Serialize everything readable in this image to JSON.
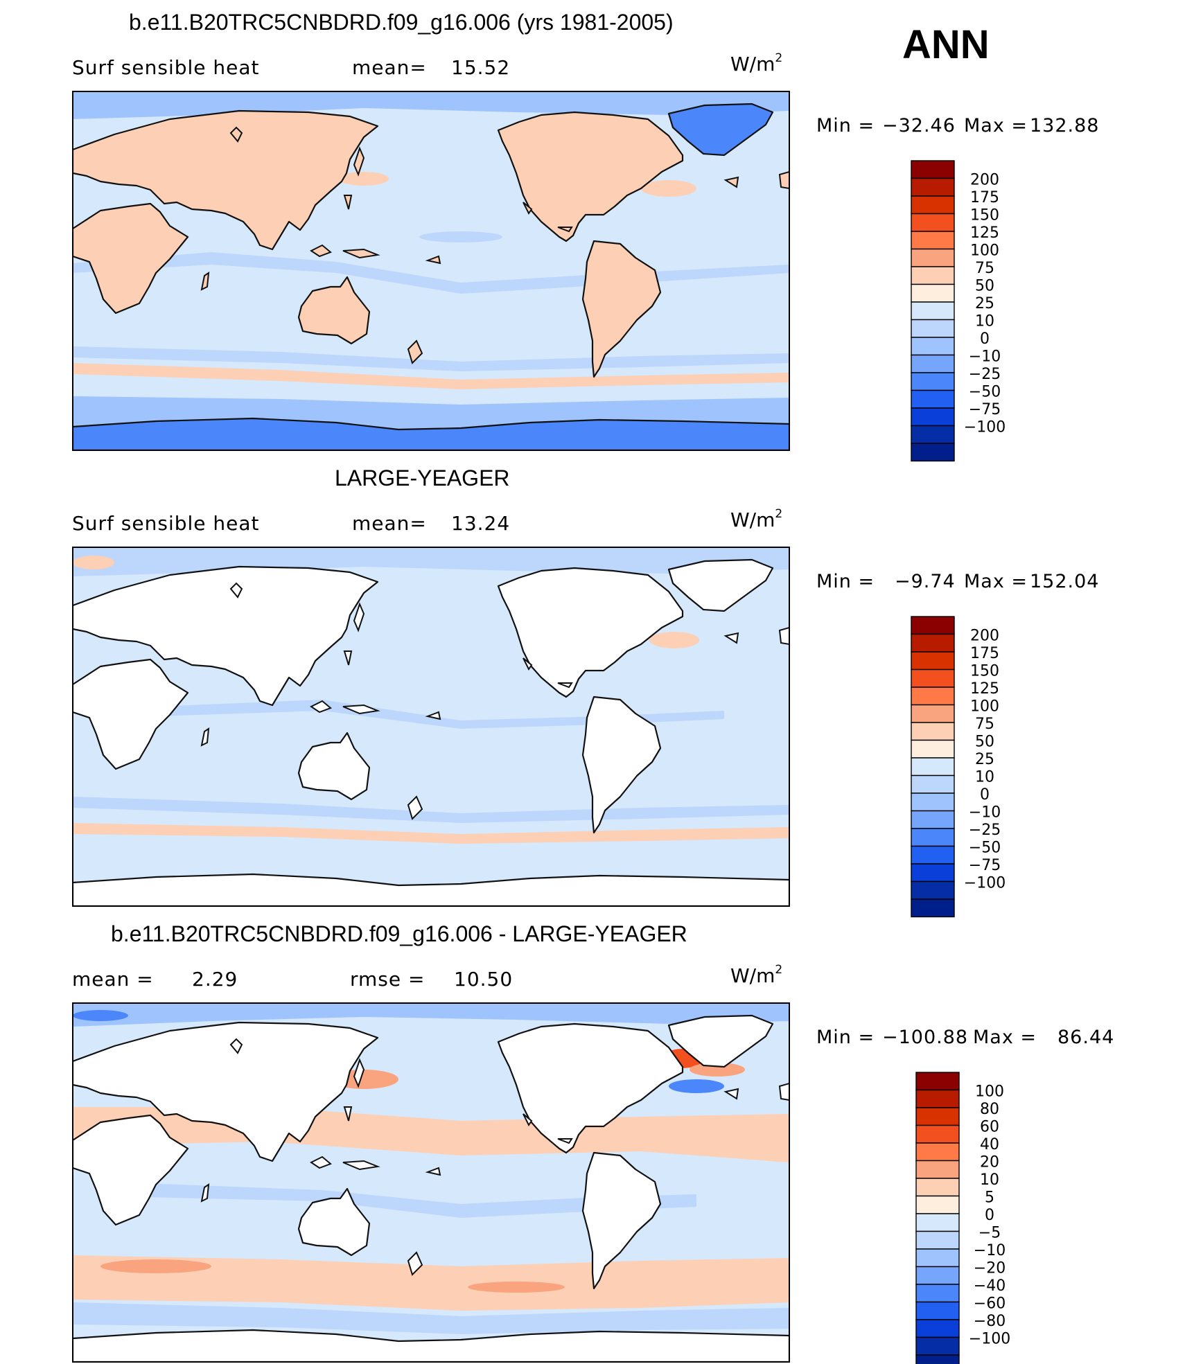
{
  "season": "ANN",
  "units_base": "W/m",
  "units_exp": "2",
  "panels": [
    {
      "title": "b.e11.B20TRC5CNBDRD.f09_g16.006 (yrs 1981-2005)",
      "left_label": "Surf sensible heat",
      "mid_label": "mean=",
      "mid_value": "15.52",
      "min_label": "Min =",
      "min_value": "−32.46",
      "max_label": "Max =",
      "max_value": "132.88",
      "land_filled": true,
      "colorbar": {
        "colors": [
          "#8b0000",
          "#b71c00",
          "#d83200",
          "#f2501e",
          "#ff7a47",
          "#f9a47e",
          "#fdcfb4",
          "#fdeedd",
          "#d6e8fc",
          "#bcd6fc",
          "#9fc4fd",
          "#76a6fc",
          "#4c86fb",
          "#2160f0",
          "#0a3fd9",
          "#052ea6",
          "#001f8a"
        ],
        "labels": [
          "200",
          "175",
          "150",
          "125",
          "100",
          "75",
          "50",
          "25",
          "10",
          "0",
          "−10",
          "−25",
          "−50",
          "−75",
          "−100"
        ]
      }
    },
    {
      "title": "LARGE-YEAGER",
      "left_label": "Surf sensible heat",
      "mid_label": "mean=",
      "mid_value": "13.24",
      "min_label": "Min =",
      "min_value": "−9.74",
      "max_label": "Max =",
      "max_value": "152.04",
      "land_filled": false,
      "colorbar": {
        "colors": [
          "#8b0000",
          "#b71c00",
          "#d83200",
          "#f2501e",
          "#ff7a47",
          "#f9a47e",
          "#fdcfb4",
          "#fdeedd",
          "#d6e8fc",
          "#bcd6fc",
          "#9fc4fd",
          "#76a6fc",
          "#4c86fb",
          "#2160f0",
          "#0a3fd9",
          "#052ea6",
          "#001f8a"
        ],
        "labels": [
          "200",
          "175",
          "150",
          "125",
          "100",
          "75",
          "50",
          "25",
          "10",
          "0",
          "−10",
          "−25",
          "−50",
          "−75",
          "−100"
        ]
      }
    },
    {
      "title": "b.e11.B20TRC5CNBDRD.f09_g16.006 - LARGE-YEAGER",
      "left_label": "mean =",
      "left_value": "2.29",
      "mid_label": "rmse =",
      "mid_value": "10.50",
      "min_label": "Min =",
      "min_value": "−100.88",
      "max_label": "Max =",
      "max_value": "86.44",
      "land_filled": false,
      "colorbar": {
        "colors": [
          "#8b0000",
          "#b71c00",
          "#d83200",
          "#f2501e",
          "#ff7a47",
          "#f9a47e",
          "#fdcfb4",
          "#fdeedd",
          "#d6e8fc",
          "#bcd6fc",
          "#9fc4fd",
          "#76a6fc",
          "#4c86fb",
          "#2160f0",
          "#0a3fd9",
          "#052ea6",
          "#001f8a"
        ],
        "labels": [
          "100",
          "80",
          "60",
          "40",
          "20",
          "10",
          "5",
          "0",
          "−5",
          "−10",
          "−20",
          "−40",
          "−60",
          "−80",
          "−100"
        ]
      }
    }
  ],
  "colors": {
    "ocean_base": "#d6e8fc",
    "ocean_light_blue": "#bcd6fc",
    "ocean_mid_blue": "#9fc4fd",
    "ice_blue": "#4c86fb",
    "land_warm": "#fdcfb4",
    "warm_strong": "#f9a47e",
    "hot": "#f2501e",
    "land_blank": "#ffffff",
    "coast": "#111111"
  }
}
